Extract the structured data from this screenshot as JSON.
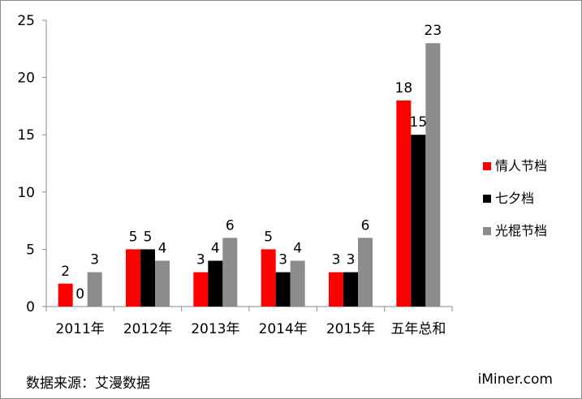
{
  "chart_data": {
    "type": "bar",
    "title": "",
    "xlabel": "",
    "ylabel": "",
    "categories": [
      "2011年",
      "2012年",
      "2013年",
      "2014年",
      "2015年",
      "五年总和"
    ],
    "series": [
      {
        "name": "情人节档",
        "color": "#ff0000",
        "values": [
          2,
          5,
          3,
          5,
          3,
          18
        ]
      },
      {
        "name": "七夕档",
        "color": "#000000",
        "values": [
          0,
          5,
          4,
          3,
          3,
          15
        ]
      },
      {
        "name": "光棍节档",
        "color": "#8c8c8c",
        "values": [
          3,
          4,
          6,
          4,
          6,
          23
        ]
      }
    ],
    "ylim": [
      0,
      25
    ],
    "yticks": [
      0,
      5,
      10,
      15,
      20,
      25
    ],
    "grid": false,
    "legend_position": "right"
  },
  "footer": {
    "source": "数据来源：艾漫数据",
    "brand": "iMiner.com"
  },
  "colors": {
    "axis": "#8a8a8a"
  }
}
